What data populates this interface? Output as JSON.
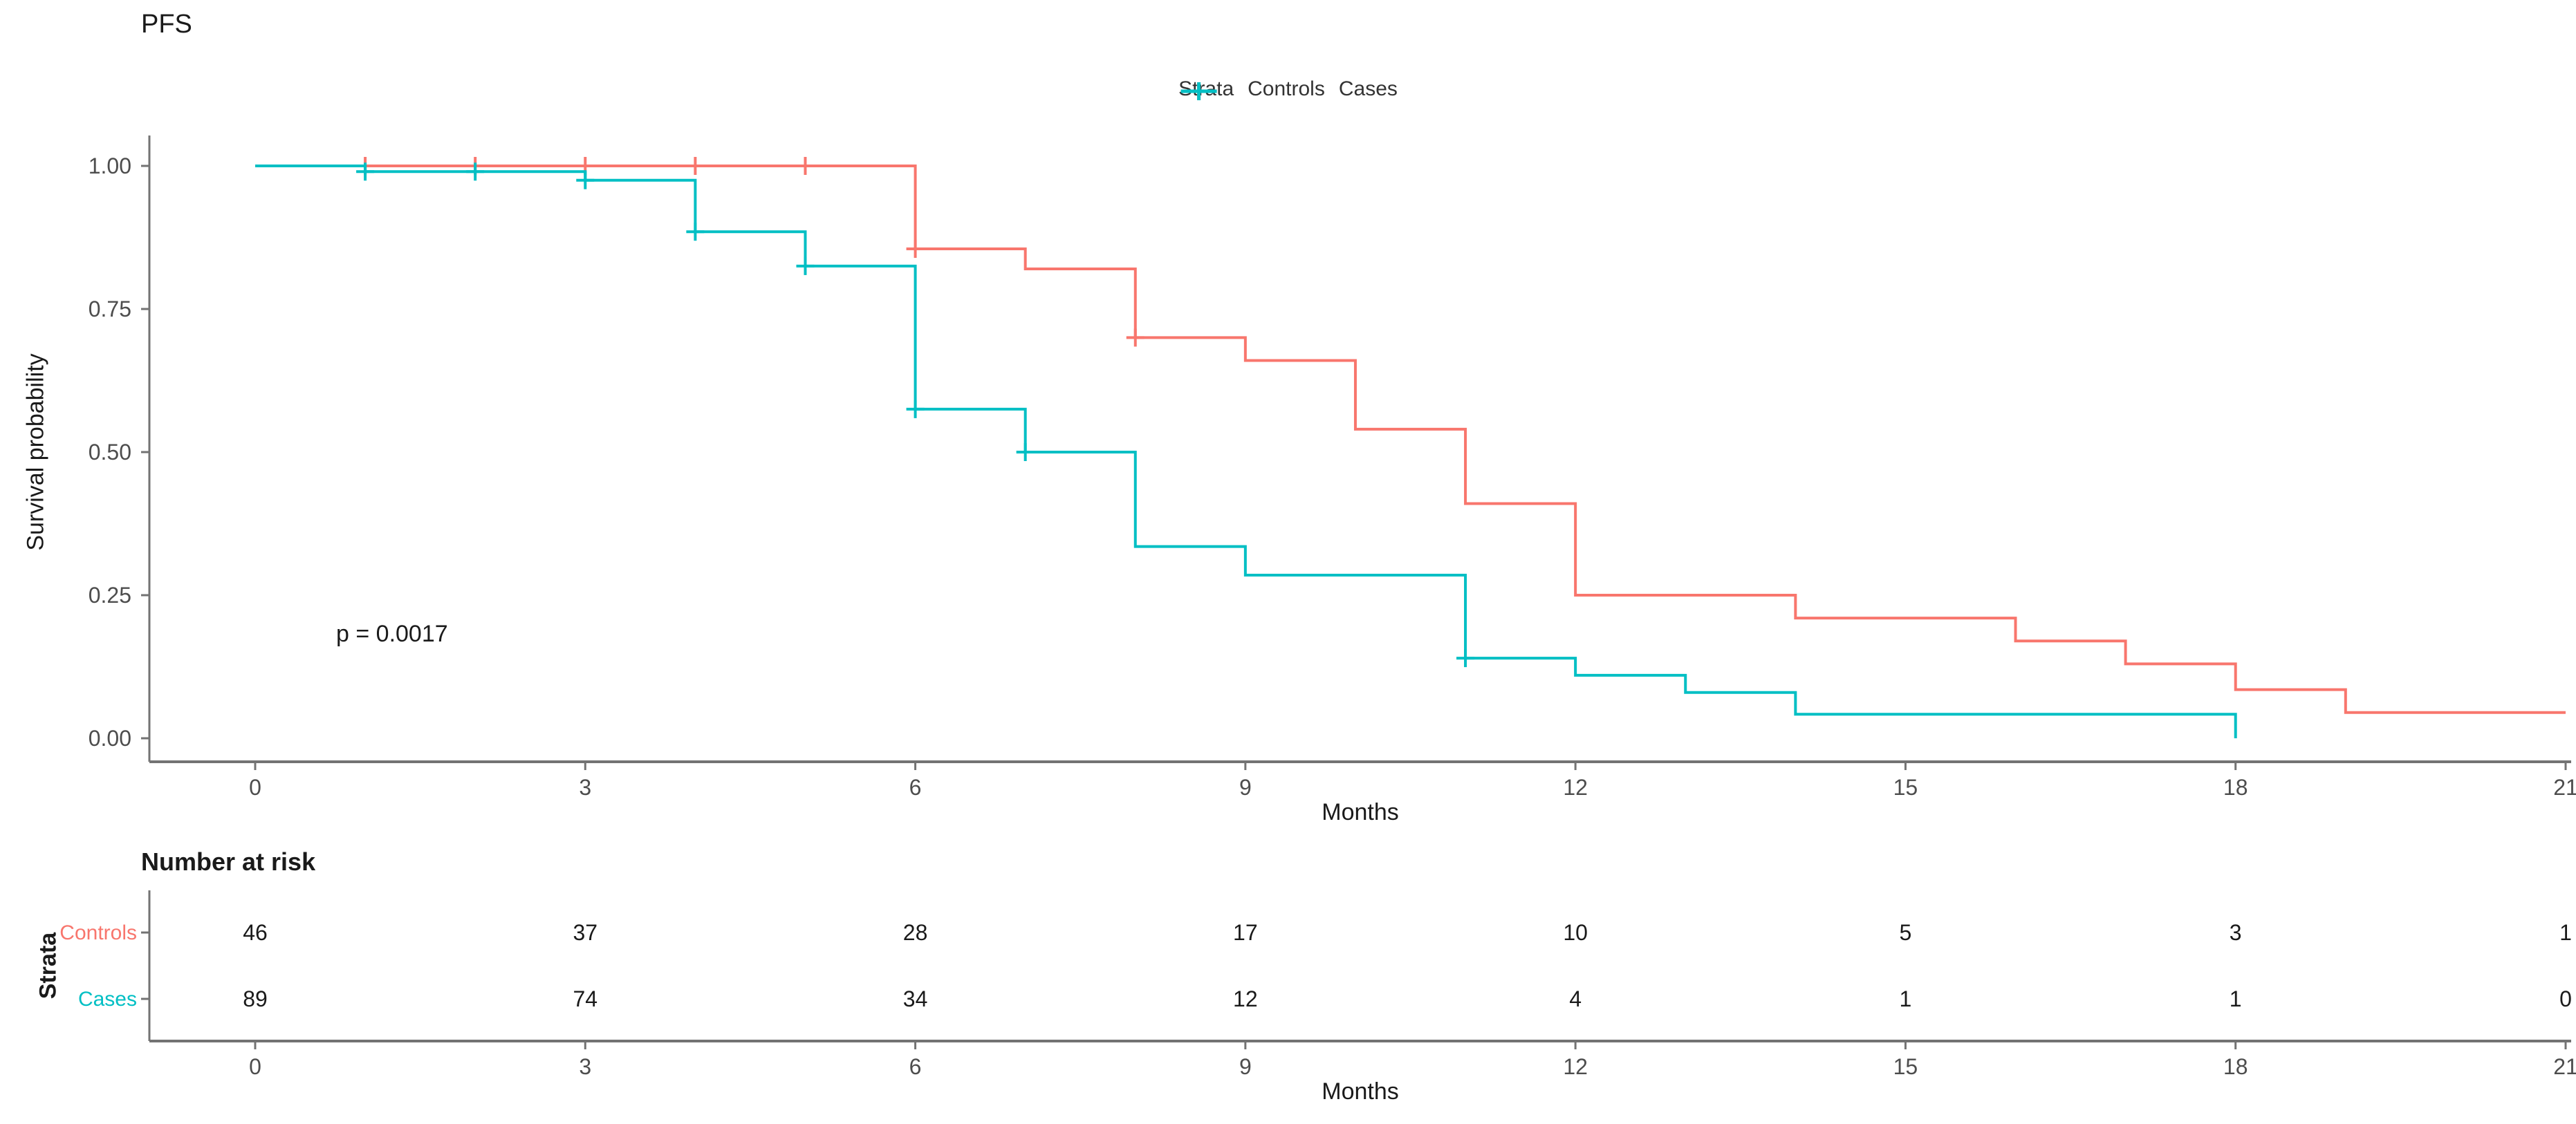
{
  "chart_data": {
    "type": "line",
    "subtype": "kaplan-meier-step",
    "title": "PFS",
    "xlabel": "Months",
    "ylabel": "Survival probability",
    "xlim": [
      0,
      21
    ],
    "ylim": [
      0,
      1
    ],
    "x_ticks": [
      0,
      3,
      6,
      9,
      12,
      15,
      18,
      21
    ],
    "y_ticks": [
      1.0,
      0.75,
      0.5,
      0.25,
      0.0
    ],
    "grid": "off",
    "legend_title": "Strata",
    "legend_position": "top-center",
    "p_value_annotation": "p = 0.0017",
    "series": [
      {
        "name": "Controls",
        "color": "#F8766D",
        "steps": [
          [
            0,
            1.0
          ],
          [
            6,
            0.855
          ],
          [
            7,
            0.82
          ],
          [
            8,
            0.7
          ],
          [
            9,
            0.66
          ],
          [
            10,
            0.54
          ],
          [
            11,
            0.41
          ],
          [
            12,
            0.25
          ],
          [
            14,
            0.21
          ],
          [
            16,
            0.17
          ],
          [
            17,
            0.13
          ],
          [
            18,
            0.085
          ],
          [
            19,
            0.045
          ],
          [
            21,
            0.045
          ]
        ],
        "censor_marks": [
          [
            1,
            1.0
          ],
          [
            2,
            1.0
          ],
          [
            3,
            1.0
          ],
          [
            4,
            1.0
          ],
          [
            5,
            1.0
          ],
          [
            6,
            0.855
          ],
          [
            8,
            0.7
          ]
        ]
      },
      {
        "name": "Cases",
        "color": "#00BFC4",
        "steps": [
          [
            0,
            1.0
          ],
          [
            1,
            0.99
          ],
          [
            3,
            0.975
          ],
          [
            4,
            0.885
          ],
          [
            5,
            0.825
          ],
          [
            6,
            0.575
          ],
          [
            7,
            0.5
          ],
          [
            8,
            0.335
          ],
          [
            9,
            0.285
          ],
          [
            11,
            0.14
          ],
          [
            12,
            0.11
          ],
          [
            13,
            0.08
          ],
          [
            14,
            0.042
          ],
          [
            18,
            0.0
          ]
        ],
        "censor_marks": [
          [
            1,
            0.99
          ],
          [
            2,
            0.99
          ],
          [
            3,
            0.975
          ],
          [
            4,
            0.885
          ],
          [
            5,
            0.825
          ],
          [
            6,
            0.575
          ],
          [
            7,
            0.5
          ],
          [
            11,
            0.14
          ]
        ]
      }
    ],
    "risk_table": {
      "title": "Number at risk",
      "y_axis_label": "Strata",
      "xlabel": "Months",
      "time_points": [
        0,
        3,
        6,
        9,
        12,
        15,
        18,
        21
      ],
      "rows": [
        {
          "name": "Controls",
          "color": "#F8766D",
          "values": [
            46,
            37,
            28,
            17,
            10,
            5,
            3,
            1
          ]
        },
        {
          "name": "Cases",
          "color": "#00BFC4",
          "values": [
            89,
            74,
            34,
            12,
            4,
            1,
            1,
            0
          ]
        }
      ]
    },
    "style": {
      "axis_color": "#737373",
      "tick_label_color": "#4d4d4d",
      "text_color": "#1a1a1a"
    }
  }
}
